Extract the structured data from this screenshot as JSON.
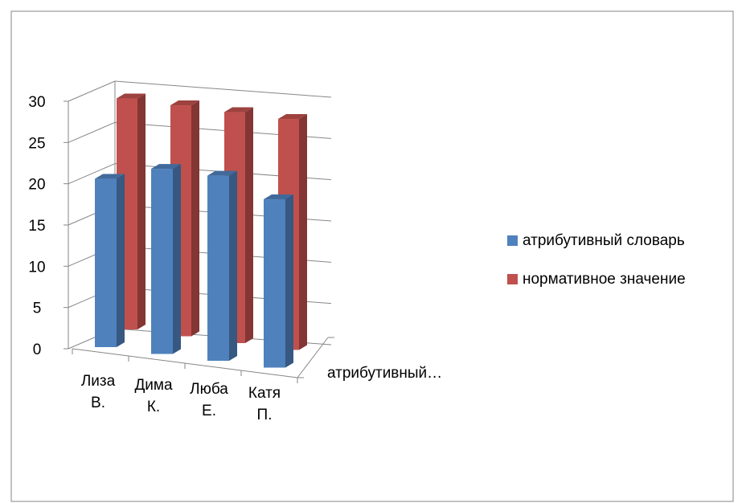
{
  "chart_data": {
    "type": "bar",
    "categories": [
      "Лиза В.",
      "Дима К.",
      "Люба Е.",
      "Катя П."
    ],
    "category_lines": [
      [
        "Лиза",
        "В."
      ],
      [
        "Дима",
        "К."
      ],
      [
        "Люба",
        "Е."
      ],
      [
        "Катя",
        "П."
      ]
    ],
    "series": [
      {
        "name": "атрибутивный словарь",
        "values": [
          20,
          22,
          22,
          20
        ],
        "color": "#4F81BD"
      },
      {
        "name": "нормативное значение",
        "values": [
          28,
          28,
          28,
          28
        ],
        "color": "#C0504D"
      }
    ],
    "depth_axis_label": "атрибутивный…",
    "ylim": [
      0,
      30
    ],
    "yticks": [
      "0",
      "5",
      "10",
      "15",
      "20",
      "25",
      "30"
    ],
    "grid": true,
    "legend_position": "right",
    "style": "3d-clustered-column"
  }
}
